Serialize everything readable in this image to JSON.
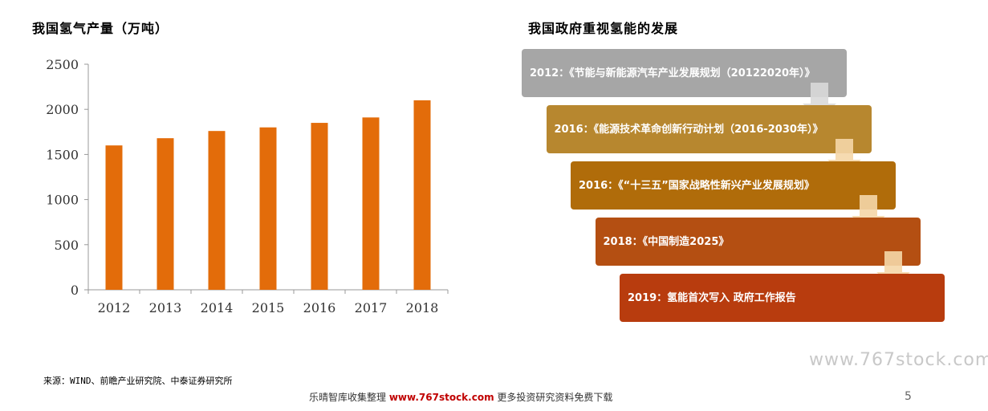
{
  "chart_title": "我国氢气产量（万吨）",
  "timeline_title": "我国政府重视氢能的发展",
  "chart_data": {
    "type": "bar",
    "title": "我国氢气产量（万吨）",
    "categories": [
      "2012",
      "2013",
      "2014",
      "2015",
      "2016",
      "2017",
      "2018"
    ],
    "values": [
      1600,
      1680,
      1760,
      1800,
      1850,
      1910,
      2100
    ],
    "ylim": [
      0,
      2500
    ],
    "yticks": [
      "0",
      "500",
      "1000",
      "1500",
      "2000",
      "2500"
    ],
    "bar_color": "#e36c0a",
    "grid": false
  },
  "timeline": [
    {
      "text": "2012：《节能与新能源汽车产业发展规划（20122020年）》",
      "color": "#a6a6a6"
    },
    {
      "text": "2016：《能源技术革命创新行动计划（2016-2030年）》",
      "color": "#b7872f"
    },
    {
      "text": "2016：《“十三五”国家战略性新兴产业发展规划》",
      "color": "#b06c0a"
    },
    {
      "text": "2018：《中国制造2025》",
      "color": "#b44f12"
    },
    {
      "text": "2019：氢能首次写入 政府工作报告",
      "color": "#b83c0e"
    }
  ],
  "source": "来源：WIND、前瞻产业研究院、中泰证券研究所",
  "watermark": "www.767stock.com",
  "footer": {
    "prefix": "乐晴智库收集整理",
    "url": "www.767stock.com",
    "suffix": "更多投资研究资料免费下载"
  },
  "page_number": "5"
}
